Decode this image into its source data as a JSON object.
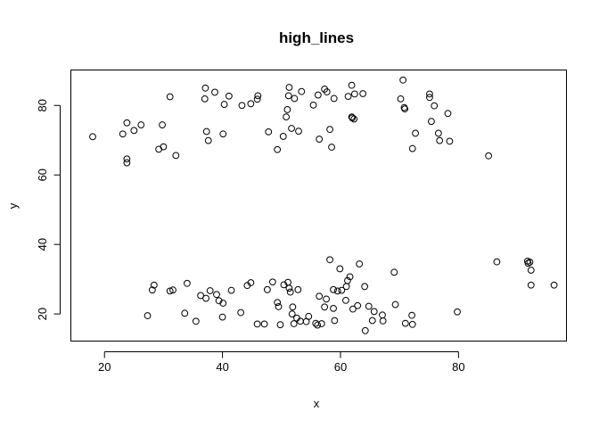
{
  "chart_data": {
    "type": "scatter",
    "title": "high_lines",
    "xlabel": "x",
    "ylabel": "y",
    "xlim": [
      14.3,
      98.3
    ],
    "ylim": [
      12.2,
      90.2
    ],
    "xticks": [
      20,
      40,
      60,
      80
    ],
    "yticks": [
      20,
      40,
      60,
      80
    ],
    "grid": false,
    "marker": "open-circle",
    "points": [
      {
        "x": 18.0,
        "y": 71.0
      },
      {
        "x": 23.1,
        "y": 71.8
      },
      {
        "x": 23.8,
        "y": 75.0
      },
      {
        "x": 23.8,
        "y": 64.6
      },
      {
        "x": 23.8,
        "y": 63.5
      },
      {
        "x": 25.0,
        "y": 72.8
      },
      {
        "x": 26.2,
        "y": 74.4
      },
      {
        "x": 29.2,
        "y": 67.4
      },
      {
        "x": 29.8,
        "y": 74.4
      },
      {
        "x": 30.0,
        "y": 68.1
      },
      {
        "x": 31.1,
        "y": 82.5
      },
      {
        "x": 32.1,
        "y": 65.6
      },
      {
        "x": 37.0,
        "y": 81.9
      },
      {
        "x": 37.1,
        "y": 85.0
      },
      {
        "x": 37.3,
        "y": 72.5
      },
      {
        "x": 37.6,
        "y": 69.9
      },
      {
        "x": 38.7,
        "y": 83.8
      },
      {
        "x": 40.1,
        "y": 71.8
      },
      {
        "x": 40.3,
        "y": 80.3
      },
      {
        "x": 41.1,
        "y": 82.7
      },
      {
        "x": 43.3,
        "y": 80.0
      },
      {
        "x": 44.8,
        "y": 80.5
      },
      {
        "x": 45.9,
        "y": 81.8
      },
      {
        "x": 46.0,
        "y": 82.8
      },
      {
        "x": 47.8,
        "y": 72.4
      },
      {
        "x": 49.3,
        "y": 67.3
      },
      {
        "x": 50.3,
        "y": 71.1
      },
      {
        "x": 50.8,
        "y": 76.7
      },
      {
        "x": 51.0,
        "y": 78.8
      },
      {
        "x": 51.3,
        "y": 85.2
      },
      {
        "x": 51.2,
        "y": 82.8
      },
      {
        "x": 51.7,
        "y": 73.4
      },
      {
        "x": 52.2,
        "y": 82.0
      },
      {
        "x": 52.9,
        "y": 72.6
      },
      {
        "x": 53.4,
        "y": 84.0
      },
      {
        "x": 55.4,
        "y": 80.1
      },
      {
        "x": 56.2,
        "y": 83.0
      },
      {
        "x": 56.4,
        "y": 70.3
      },
      {
        "x": 57.3,
        "y": 84.7
      },
      {
        "x": 57.7,
        "y": 83.9
      },
      {
        "x": 58.2,
        "y": 73.1
      },
      {
        "x": 58.5,
        "y": 68.0
      },
      {
        "x": 58.9,
        "y": 82.0
      },
      {
        "x": 61.3,
        "y": 82.6
      },
      {
        "x": 61.9,
        "y": 85.8
      },
      {
        "x": 61.9,
        "y": 76.7
      },
      {
        "x": 62.0,
        "y": 76.4
      },
      {
        "x": 62.3,
        "y": 76.1
      },
      {
        "x": 62.4,
        "y": 83.3
      },
      {
        "x": 63.8,
        "y": 83.4
      },
      {
        "x": 70.2,
        "y": 81.9
      },
      {
        "x": 70.6,
        "y": 87.3
      },
      {
        "x": 70.8,
        "y": 79.4
      },
      {
        "x": 70.9,
        "y": 79.0
      },
      {
        "x": 72.2,
        "y": 67.6
      },
      {
        "x": 72.7,
        "y": 72.0
      },
      {
        "x": 75.1,
        "y": 83.3
      },
      {
        "x": 75.1,
        "y": 82.3
      },
      {
        "x": 75.4,
        "y": 75.4
      },
      {
        "x": 75.9,
        "y": 79.9
      },
      {
        "x": 76.6,
        "y": 72.0
      },
      {
        "x": 76.8,
        "y": 69.9
      },
      {
        "x": 78.2,
        "y": 77.7
      },
      {
        "x": 78.5,
        "y": 69.7
      },
      {
        "x": 85.1,
        "y": 65.5
      },
      {
        "x": 27.3,
        "y": 19.5
      },
      {
        "x": 28.1,
        "y": 26.9
      },
      {
        "x": 28.4,
        "y": 28.3
      },
      {
        "x": 31.1,
        "y": 26.6
      },
      {
        "x": 31.6,
        "y": 26.9
      },
      {
        "x": 33.6,
        "y": 20.2
      },
      {
        "x": 34.0,
        "y": 28.8
      },
      {
        "x": 35.5,
        "y": 17.9
      },
      {
        "x": 36.3,
        "y": 25.3
      },
      {
        "x": 37.2,
        "y": 24.5
      },
      {
        "x": 37.9,
        "y": 26.7
      },
      {
        "x": 39.0,
        "y": 25.6
      },
      {
        "x": 39.4,
        "y": 23.8
      },
      {
        "x": 40.0,
        "y": 19.1
      },
      {
        "x": 40.1,
        "y": 23.1
      },
      {
        "x": 41.5,
        "y": 26.8
      },
      {
        "x": 43.1,
        "y": 20.4
      },
      {
        "x": 44.2,
        "y": 28.2
      },
      {
        "x": 44.8,
        "y": 29.0
      },
      {
        "x": 45.9,
        "y": 17.1
      },
      {
        "x": 47.1,
        "y": 17.1
      },
      {
        "x": 47.6,
        "y": 27.0
      },
      {
        "x": 48.5,
        "y": 29.2
      },
      {
        "x": 49.3,
        "y": 23.3
      },
      {
        "x": 49.5,
        "y": 22.1
      },
      {
        "x": 49.8,
        "y": 16.9
      },
      {
        "x": 50.4,
        "y": 28.4
      },
      {
        "x": 51.1,
        "y": 29.1
      },
      {
        "x": 51.3,
        "y": 27.4
      },
      {
        "x": 51.5,
        "y": 26.3
      },
      {
        "x": 51.8,
        "y": 20.0
      },
      {
        "x": 51.9,
        "y": 22.0
      },
      {
        "x": 52.1,
        "y": 17.2
      },
      {
        "x": 52.6,
        "y": 18.8
      },
      {
        "x": 52.8,
        "y": 27.0
      },
      {
        "x": 53.2,
        "y": 17.9
      },
      {
        "x": 54.2,
        "y": 17.8
      },
      {
        "x": 54.6,
        "y": 19.3
      },
      {
        "x": 55.8,
        "y": 17.3
      },
      {
        "x": 56.1,
        "y": 16.8
      },
      {
        "x": 56.4,
        "y": 25.1
      },
      {
        "x": 56.8,
        "y": 17.2
      },
      {
        "x": 57.3,
        "y": 22.0
      },
      {
        "x": 57.6,
        "y": 24.3
      },
      {
        "x": 58.2,
        "y": 35.6
      },
      {
        "x": 58.8,
        "y": 27.0
      },
      {
        "x": 58.8,
        "y": 21.6
      },
      {
        "x": 59.0,
        "y": 18.1
      },
      {
        "x": 59.5,
        "y": 26.6
      },
      {
        "x": 59.9,
        "y": 33.0
      },
      {
        "x": 60.2,
        "y": 26.8
      },
      {
        "x": 60.9,
        "y": 23.9
      },
      {
        "x": 61.0,
        "y": 27.9
      },
      {
        "x": 61.2,
        "y": 29.6
      },
      {
        "x": 61.6,
        "y": 30.7
      },
      {
        "x": 62.1,
        "y": 21.4
      },
      {
        "x": 62.9,
        "y": 22.4
      },
      {
        "x": 63.2,
        "y": 34.4
      },
      {
        "x": 64.1,
        "y": 27.9
      },
      {
        "x": 64.2,
        "y": 15.2
      },
      {
        "x": 64.8,
        "y": 22.2
      },
      {
        "x": 65.4,
        "y": 18.1
      },
      {
        "x": 65.7,
        "y": 20.7
      },
      {
        "x": 67.1,
        "y": 19.7
      },
      {
        "x": 67.2,
        "y": 18.0
      },
      {
        "x": 69.1,
        "y": 32.0
      },
      {
        "x": 69.3,
        "y": 22.7
      },
      {
        "x": 71.0,
        "y": 17.3
      },
      {
        "x": 72.1,
        "y": 19.6
      },
      {
        "x": 72.2,
        "y": 17.0
      },
      {
        "x": 79.8,
        "y": 20.6
      },
      {
        "x": 86.5,
        "y": 35.0
      },
      {
        "x": 91.7,
        "y": 35.2
      },
      {
        "x": 91.8,
        "y": 34.6
      },
      {
        "x": 92.1,
        "y": 34.9
      },
      {
        "x": 92.3,
        "y": 32.6
      },
      {
        "x": 92.3,
        "y": 28.3
      },
      {
        "x": 96.2,
        "y": 28.3
      }
    ]
  }
}
